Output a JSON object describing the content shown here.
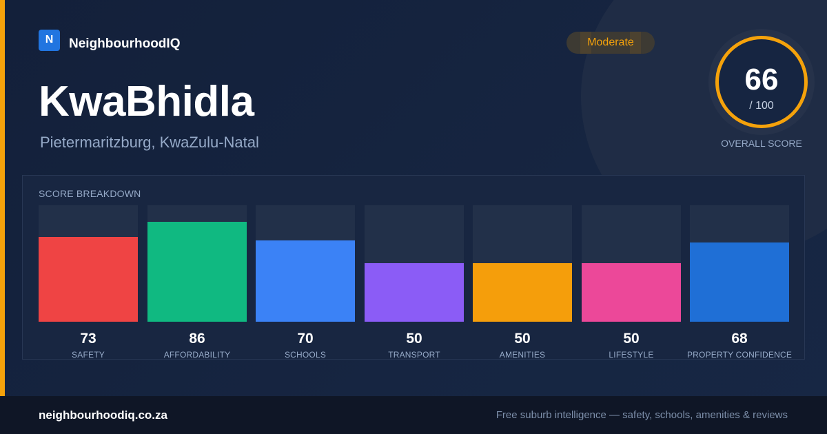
{
  "brand": {
    "logo_letter": "N",
    "name": "NeighbourhoodIQ"
  },
  "suburb": {
    "name": "KwaBhidla",
    "location": "Pietermaritzburg, KwaZulu-Natal"
  },
  "rating_badge": {
    "label": "Moderate",
    "color": "#f5a20b"
  },
  "overall": {
    "score": "66",
    "max": "/ 100",
    "label": "OVERALL SCORE",
    "ring_color": "#f5a20b"
  },
  "breakdown": {
    "title": "SCORE BREAKDOWN",
    "items": [
      {
        "label": "SAFETY",
        "value": 73,
        "color": "#ef4444"
      },
      {
        "label": "AFFORDABILITY",
        "value": 86,
        "color": "#10b981"
      },
      {
        "label": "SCHOOLS",
        "value": 70,
        "color": "#3b82f6"
      },
      {
        "label": "TRANSPORT",
        "value": 50,
        "color": "#8b5cf6"
      },
      {
        "label": "AMENITIES",
        "value": 50,
        "color": "#f59e0b"
      },
      {
        "label": "LIFESTYLE",
        "value": 50,
        "color": "#ec4899"
      },
      {
        "label": "PROPERTY CONFIDENCE",
        "value": 68,
        "color": "#1f6fd6"
      }
    ]
  },
  "footer": {
    "site": "neighbourhoodiq.co.za",
    "tagline": "Free suburb intelligence — safety, schools, amenities & reviews"
  }
}
